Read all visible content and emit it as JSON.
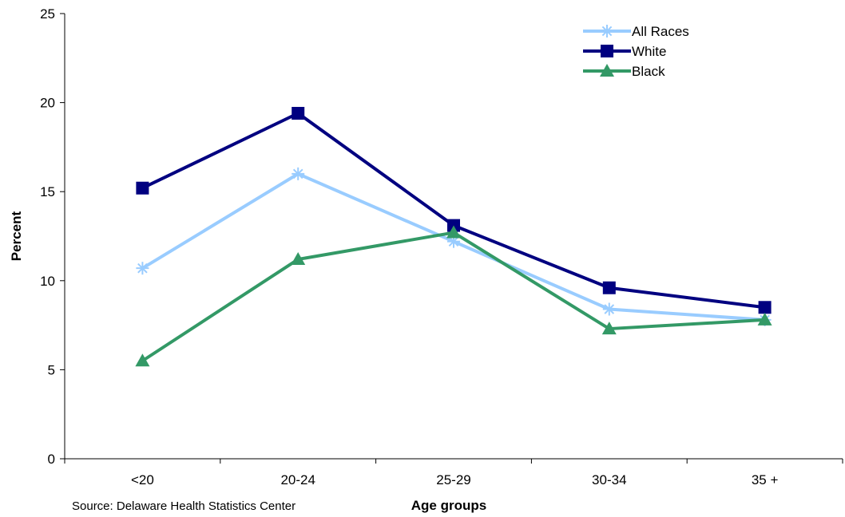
{
  "chart_data": {
    "type": "line",
    "categories": [
      "<20",
      "20-24",
      "25-29",
      "30-34",
      "35 +"
    ],
    "xlabel": "Age groups",
    "ylabel": "Percent",
    "ylim": [
      0,
      25
    ],
    "yticks": [
      0,
      5,
      10,
      15,
      20,
      25
    ],
    "grid": false,
    "legend_position": "top-right",
    "source": "Source: Delaware Health Statistics Center",
    "series": [
      {
        "name": "All Races",
        "values": [
          10.7,
          16.0,
          12.2,
          8.4,
          7.8
        ],
        "color": "#99ccff",
        "marker": "asterisk"
      },
      {
        "name": "White",
        "values": [
          15.2,
          19.4,
          13.1,
          9.6,
          8.5
        ],
        "color": "#000080",
        "marker": "square"
      },
      {
        "name": "Black",
        "values": [
          5.5,
          11.2,
          12.7,
          7.3,
          7.8
        ],
        "color": "#339966",
        "marker": "triangle"
      }
    ]
  }
}
